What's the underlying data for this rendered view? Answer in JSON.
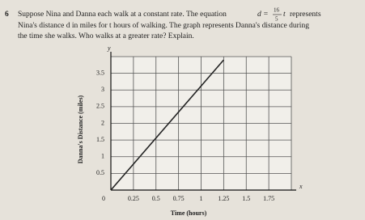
{
  "problem": {
    "number": "6",
    "text_a": "Suppose Nina and Danna each walk at a constant rate. The equation",
    "eq_lhs": "d =",
    "eq_num": "16",
    "eq_den": "5",
    "eq_var": "t",
    "text_b": "represents",
    "line_2": "Nina's distance d in miles for t hours of walking. The graph represents Danna's distance during",
    "line_3": "the time she walks. Who walks at a greater rate? Explain."
  },
  "chart_data": {
    "type": "line",
    "x_label": "Time (hours)",
    "y_label": "Danna's Distance (miles)",
    "x_axis_name": "x",
    "y_axis_name": "y",
    "x": [
      0,
      1.25
    ],
    "series": [
      {
        "color": "#222222",
        "values": [
          0,
          3.9
        ]
      }
    ],
    "xlim": [
      0,
      2
    ],
    "ylim": [
      0,
      4
    ],
    "xticks": [
      0,
      0.25,
      0.5,
      0.75,
      1,
      1.25,
      1.5,
      1.75
    ],
    "yticks": [
      0.5,
      1,
      1.5,
      2,
      2.5,
      3,
      3.5
    ],
    "grid": true
  }
}
